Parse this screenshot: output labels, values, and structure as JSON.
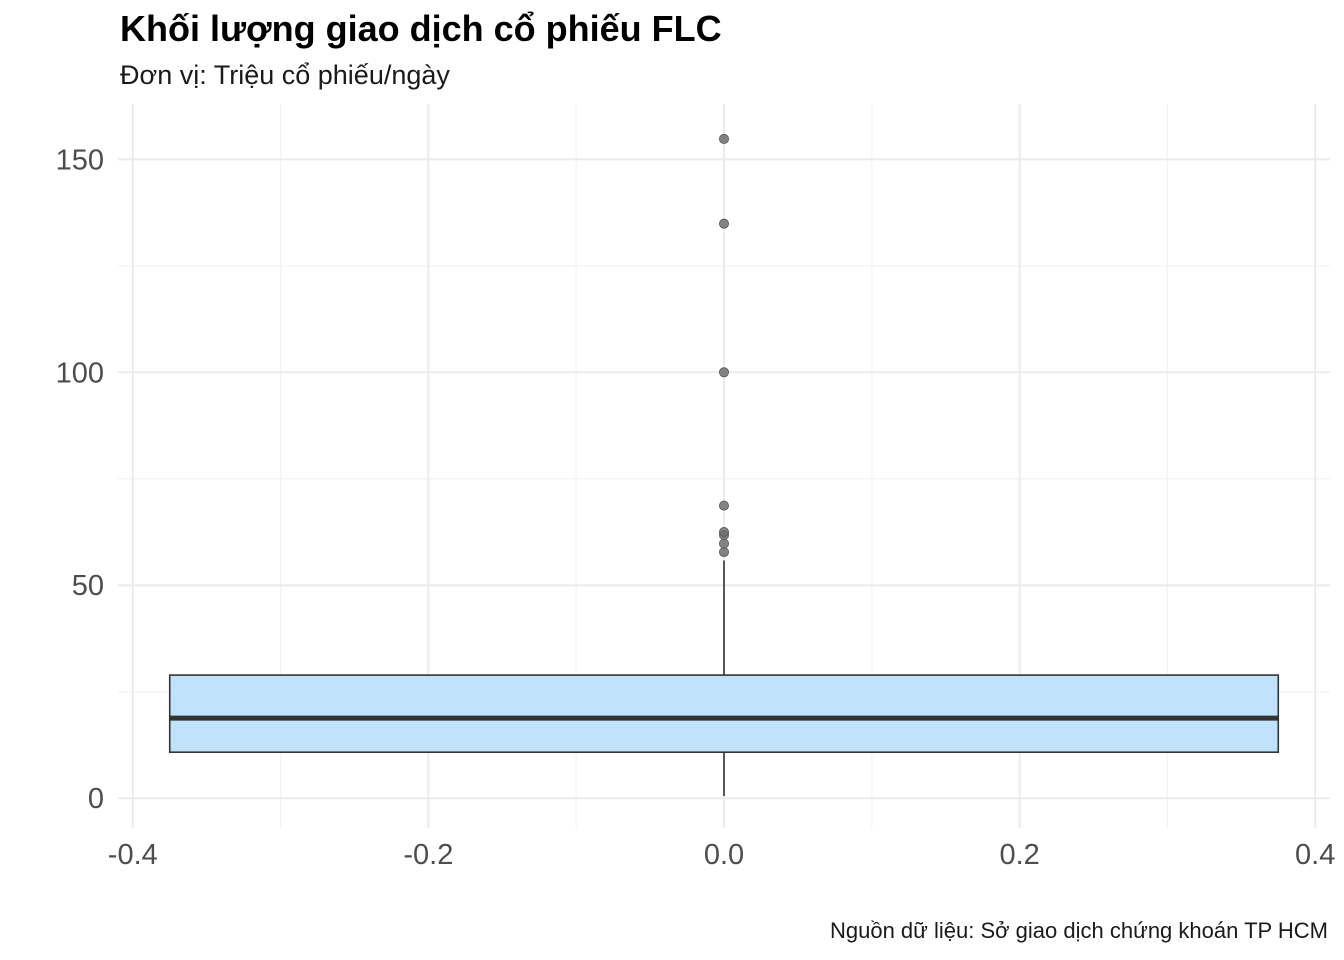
{
  "title": "Khối lượng giao dịch cổ phiếu FLC",
  "subtitle": "Đơn vị: Triệu cổ phiếu/ngày",
  "caption": "Nguồn dữ liệu: Sở giao dịch chứng khoán TP HCM",
  "chart_data": {
    "type": "boxplot",
    "title": "Khối lượng giao dịch cổ phiếu FLC",
    "subtitle": "Đơn vị: Triệu cổ phiếu/ngày",
    "caption": "Nguồn dữ liệu: Sở giao dịch chứng khoán TP HCM",
    "xlim": [
      -0.41,
      0.41
    ],
    "ylim": [
      -7,
      163
    ],
    "x_ticks": [
      -0.4,
      -0.2,
      0.0,
      0.2,
      0.4
    ],
    "x_tick_labels": [
      "-0.4",
      "-0.2",
      "0.0",
      "0.2",
      "0.4"
    ],
    "y_ticks": [
      0,
      50,
      100,
      150
    ],
    "y_tick_labels": [
      "0",
      "50",
      "100",
      "150"
    ],
    "grid": true,
    "box": {
      "x_center": 0.0,
      "x_left": -0.375,
      "x_right": 0.375,
      "whisker_low": 0.5,
      "q1": 10.8,
      "median": 18.8,
      "q3": 28.9,
      "whisker_high": 55.8
    },
    "outliers": [
      57.8,
      59.8,
      61.8,
      62.5,
      68.7,
      100.0,
      134.9,
      154.8
    ],
    "colors": {
      "box_fill": "#bfe3fa",
      "box_stroke": "#333333",
      "median": "#333333",
      "outlier": "#6e6e6e",
      "grid_major": "#ebebeb",
      "grid_minor": "#f3f3f3"
    }
  }
}
